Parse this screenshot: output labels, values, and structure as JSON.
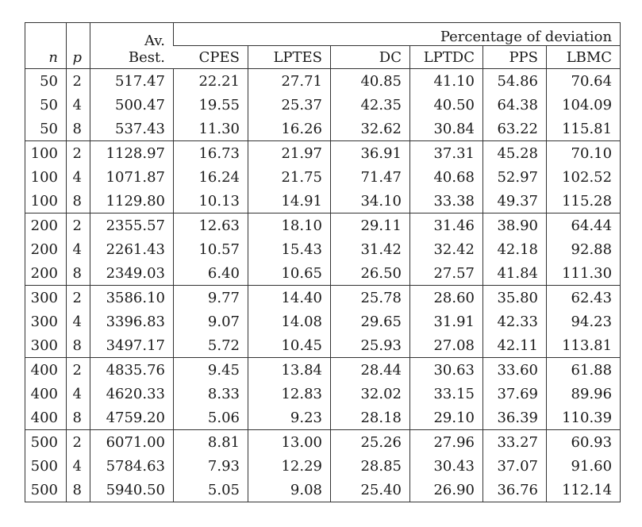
{
  "page": {
    "background": "#ffffff",
    "text_color": "#1a1a1a",
    "line_color": "#333333"
  },
  "table": {
    "header": {
      "n": "n",
      "p": "p",
      "av_line1": "Av.",
      "av_line2": "Best.",
      "deviation_group": "Percentage of deviation",
      "method_columns": [
        "CPES",
        "LPTES",
        "DC",
        "LPTDC",
        "PPS",
        "LBMC"
      ]
    },
    "rows": [
      {
        "n": "50",
        "p": "2",
        "av_best": "517.47",
        "values": [
          "22.21",
          "27.71",
          "40.85",
          "41.10",
          "54.86",
          "70.64"
        ]
      },
      {
        "n": "50",
        "p": "4",
        "av_best": "500.47",
        "values": [
          "19.55",
          "25.37",
          "42.35",
          "40.50",
          "64.38",
          "104.09"
        ]
      },
      {
        "n": "50",
        "p": "8",
        "av_best": "537.43",
        "values": [
          "11.30",
          "16.26",
          "32.62",
          "30.84",
          "63.22",
          "115.81"
        ]
      },
      {
        "n": "100",
        "p": "2",
        "av_best": "1128.97",
        "values": [
          "16.73",
          "21.97",
          "36.91",
          "37.31",
          "45.28",
          "70.10"
        ]
      },
      {
        "n": "100",
        "p": "4",
        "av_best": "1071.87",
        "values": [
          "16.24",
          "21.75",
          "71.47",
          "40.68",
          "52.97",
          "102.52"
        ]
      },
      {
        "n": "100",
        "p": "8",
        "av_best": "1129.80",
        "values": [
          "10.13",
          "14.91",
          "34.10",
          "33.38",
          "49.37",
          "115.28"
        ]
      },
      {
        "n": "200",
        "p": "2",
        "av_best": "2355.57",
        "values": [
          "12.63",
          "18.10",
          "29.11",
          "31.46",
          "38.90",
          "64.44"
        ]
      },
      {
        "n": "200",
        "p": "4",
        "av_best": "2261.43",
        "values": [
          "10.57",
          "15.43",
          "31.42",
          "32.42",
          "42.18",
          "92.88"
        ]
      },
      {
        "n": "200",
        "p": "8",
        "av_best": "2349.03",
        "values": [
          "6.40",
          "10.65",
          "26.50",
          "27.57",
          "41.84",
          "111.30"
        ]
      },
      {
        "n": "300",
        "p": "2",
        "av_best": "3586.10",
        "values": [
          "9.77",
          "14.40",
          "25.78",
          "28.60",
          "35.80",
          "62.43"
        ]
      },
      {
        "n": "300",
        "p": "4",
        "av_best": "3396.83",
        "values": [
          "9.07",
          "14.08",
          "29.65",
          "31.91",
          "42.33",
          "94.23"
        ]
      },
      {
        "n": "300",
        "p": "8",
        "av_best": "3497.17",
        "values": [
          "5.72",
          "10.45",
          "25.93",
          "27.08",
          "42.11",
          "113.81"
        ]
      },
      {
        "n": "400",
        "p": "2",
        "av_best": "4835.76",
        "values": [
          "9.45",
          "13.84",
          "28.44",
          "30.63",
          "33.60",
          "61.88"
        ]
      },
      {
        "n": "400",
        "p": "4",
        "av_best": "4620.33",
        "values": [
          "8.33",
          "12.83",
          "32.02",
          "33.15",
          "37.69",
          "89.96"
        ]
      },
      {
        "n": "400",
        "p": "8",
        "av_best": "4759.20",
        "values": [
          "5.06",
          "9.23",
          "28.18",
          "29.10",
          "36.39",
          "110.39"
        ]
      },
      {
        "n": "500",
        "p": "2",
        "av_best": "6071.00",
        "values": [
          "8.81",
          "13.00",
          "25.26",
          "27.96",
          "33.27",
          "60.93"
        ]
      },
      {
        "n": "500",
        "p": "4",
        "av_best": "5784.63",
        "values": [
          "7.93",
          "12.29",
          "28.85",
          "30.43",
          "37.07",
          "91.60"
        ]
      },
      {
        "n": "500",
        "p": "8",
        "av_best": "5940.50",
        "values": [
          "5.05",
          "9.08",
          "25.40",
          "26.90",
          "36.76",
          "112.14"
        ]
      }
    ]
  }
}
